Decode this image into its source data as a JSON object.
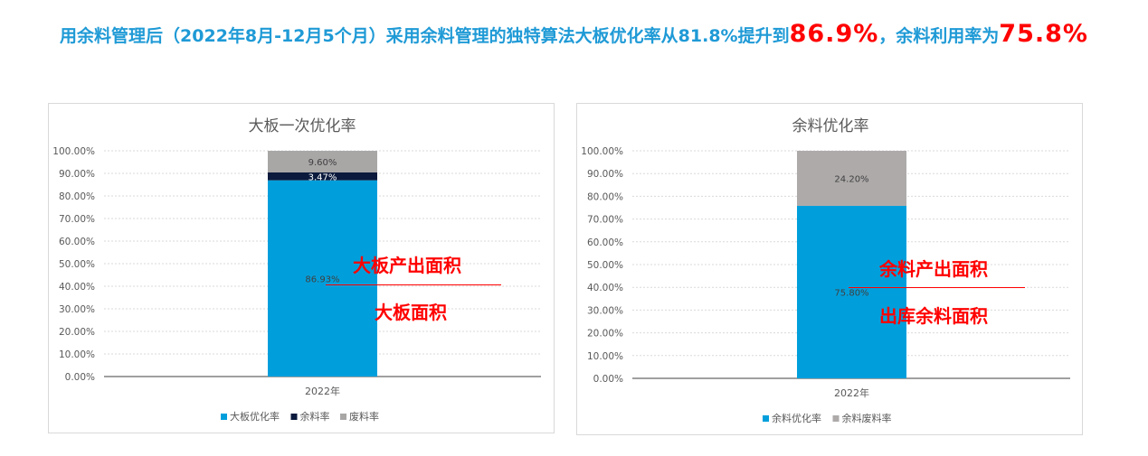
{
  "headline": {
    "prefix": "用余料管理后（2022年8月-12月5个月）采用余料管理的独特算法大板优化率从81.8%提升到",
    "value1": "86.9%",
    "middle": "，余料利用率为",
    "value2": "75.8%"
  },
  "colors": {
    "headline": "#1f9ad6",
    "highlight": "#ff0000",
    "optimized": "#009fdc",
    "remnant": "#0b1a3d",
    "waste": "#a9a6a6"
  },
  "chart_data": [
    {
      "type": "bar",
      "stacked": true,
      "title": "大板一次优化率",
      "categories": [
        "2022年"
      ],
      "series": [
        {
          "name": "大板优化率",
          "values": [
            86.93
          ],
          "label": "86.93%",
          "color": "#009fdc"
        },
        {
          "name": "余料率",
          "values": [
            3.47
          ],
          "label": "3.47%",
          "color": "#0b1a3d"
        },
        {
          "name": "废料率",
          "values": [
            9.6
          ],
          "label": "9.60%",
          "color": "#a9a6a6"
        }
      ],
      "ylim": [
        0,
        100
      ],
      "yticks": [
        "0.00%",
        "10.00%",
        "20.00%",
        "30.00%",
        "40.00%",
        "50.00%",
        "60.00%",
        "70.00%",
        "80.00%",
        "90.00%",
        "100.00%"
      ],
      "grid": true,
      "legend_position": "bottom",
      "formula": {
        "numerator": "大板产出面积",
        "denominator": "大板面积"
      }
    },
    {
      "type": "bar",
      "stacked": true,
      "title": "余料优化率",
      "categories": [
        "2022年"
      ],
      "series": [
        {
          "name": "余料优化率",
          "values": [
            75.8
          ],
          "label": "75.80%",
          "color": "#009fdc"
        },
        {
          "name": "余料废料率",
          "values": [
            24.2
          ],
          "label": "24.20%",
          "color": "#aeaaaa"
        }
      ],
      "ylim": [
        0,
        100
      ],
      "yticks": [
        "0.00%",
        "10.00%",
        "20.00%",
        "30.00%",
        "40.00%",
        "50.00%",
        "60.00%",
        "70.00%",
        "80.00%",
        "90.00%",
        "100.00%"
      ],
      "grid": true,
      "legend_position": "bottom",
      "formula": {
        "numerator": "余料产出面积",
        "denominator": "出库余料面积"
      }
    }
  ]
}
